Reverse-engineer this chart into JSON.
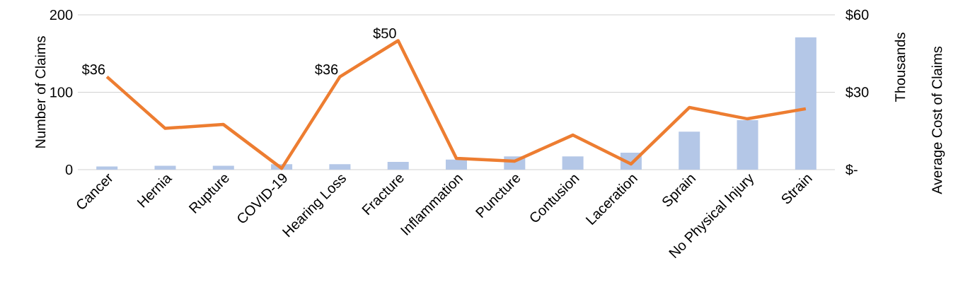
{
  "chart_data": {
    "type": "bar",
    "ylabel": "Number of Claims",
    "y2label": "Average Cost of Claims",
    "annotations": [
      "Thousands"
    ],
    "categories": [
      "Cancer",
      "Hernia",
      "Rupture",
      "COVID-19",
      "Hearing Loss",
      "Fracture",
      "Inflammation",
      "Puncture",
      "Contusion",
      "Laceration",
      "Sprain",
      "No Physical Injury",
      "Strain"
    ],
    "series": [
      {
        "color": "#b4c7e7",
        "values": [
          4,
          5,
          5,
          7,
          7,
          10,
          13,
          17,
          17,
          22,
          49,
          64,
          171
        ]
      },
      {
        "type": "line",
        "axis": "y2",
        "color": "#ed7d31",
        "values": [
          36,
          16,
          17.5,
          0.5,
          36,
          50,
          4.4,
          3.3,
          13.4,
          2.2,
          24.1,
          19.7,
          23.6
        ],
        "value_labels": [
          "$36",
          null,
          null,
          null,
          "$36",
          "$50",
          null,
          null,
          null,
          null,
          null,
          null,
          null
        ]
      }
    ],
    "ylim": [
      0,
      200
    ],
    "yticks": [
      0,
      100,
      200
    ],
    "y2lim": [
      0,
      60
    ],
    "y2ticks": [
      {
        "value": 0,
        "label": "$-"
      },
      {
        "value": 30,
        "label": "$30"
      },
      {
        "value": 60,
        "label": "$60"
      }
    ],
    "grid": "y"
  }
}
